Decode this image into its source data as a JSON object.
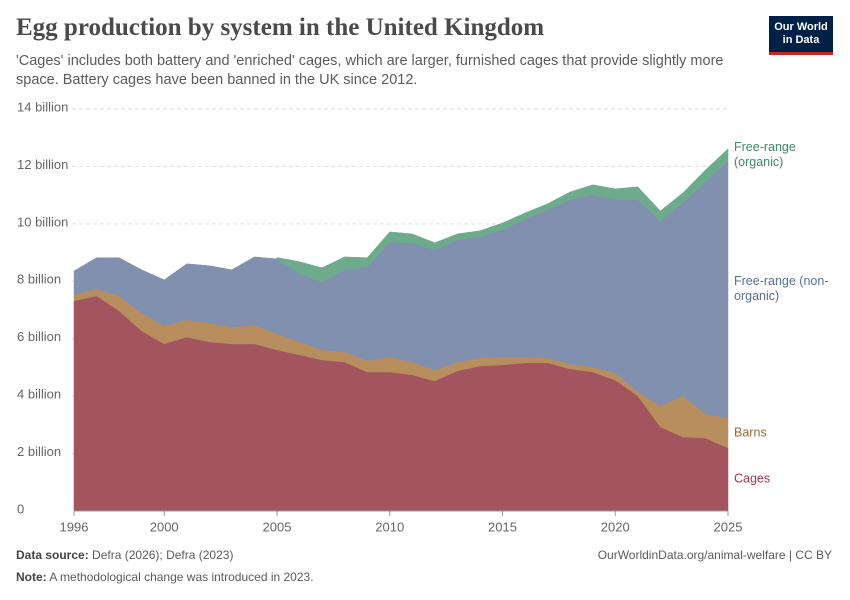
{
  "chart_data": {
    "type": "stacked-area",
    "title": "Egg production by system in the United Kingdom",
    "subtitle": "'Cages' includes both battery and 'enriched' cages, which are larger, furnished cages that provide slightly more space. Battery cages have been banned in the UK since 2012.",
    "logo": "Our World in Data",
    "source_label": "Data source:",
    "source": "Defra (2026); Defra (2023)",
    "url": "OurWorldinData.org/animal-welfare | CC BY",
    "note_label": "Note:",
    "note": "A methodological change was introduced in 2023.",
    "x": [
      1996,
      1997,
      1998,
      1999,
      2000,
      2001,
      2002,
      2003,
      2004,
      2005,
      2006,
      2007,
      2008,
      2009,
      2010,
      2011,
      2012,
      2013,
      2014,
      2015,
      2016,
      2017,
      2018,
      2019,
      2020,
      2021,
      2022,
      2023,
      2024,
      2025
    ],
    "xlim": [
      1996,
      2025
    ],
    "xticks": [
      1996,
      2000,
      2005,
      2010,
      2015,
      2020,
      2025
    ],
    "ylim": [
      0,
      14
    ],
    "yticks": [
      0,
      {
        "value": 2,
        "label": "2 billion"
      },
      {
        "value": 4,
        "label": "4 billion"
      },
      {
        "value": 6,
        "label": "6 billion"
      },
      {
        "value": 8,
        "label": "8 billion"
      },
      {
        "value": 10,
        "label": "10 billion"
      },
      {
        "value": 12,
        "label": "12 billion"
      },
      {
        "value": 14,
        "label": "14 billion"
      }
    ],
    "grid": true,
    "series": [
      {
        "name": "Cages",
        "color": "#a2555f",
        "label_color": "#a13548",
        "values": [
          7.32,
          7.49,
          6.97,
          6.27,
          5.82,
          6.06,
          5.89,
          5.82,
          5.82,
          5.61,
          5.44,
          5.26,
          5.19,
          4.84,
          4.84,
          4.74,
          4.53,
          4.88,
          5.05,
          5.09,
          5.16,
          5.16,
          4.95,
          4.84,
          4.56,
          4.01,
          2.93,
          2.58,
          2.54,
          2.2
        ]
      },
      {
        "name": "Barns",
        "color": "#b98e5f",
        "label_color": "#9a6a3a",
        "values": [
          0.21,
          0.25,
          0.52,
          0.63,
          0.63,
          0.6,
          0.66,
          0.59,
          0.66,
          0.56,
          0.45,
          0.35,
          0.35,
          0.39,
          0.53,
          0.45,
          0.38,
          0.31,
          0.28,
          0.28,
          0.21,
          0.17,
          0.17,
          0.18,
          0.25,
          0.14,
          0.73,
          1.43,
          0.84,
          1.04
        ]
      },
      {
        "name": "Free-range (non-organic)",
        "color": "#8090ae",
        "label_color": "#5b6f95",
        "values": [
          0.83,
          1.08,
          1.33,
          1.5,
          1.6,
          1.95,
          1.99,
          1.99,
          2.37,
          2.61,
          2.37,
          2.37,
          2.86,
          3.27,
          4.0,
          4.15,
          4.18,
          4.25,
          4.22,
          4.42,
          4.8,
          5.16,
          5.72,
          5.99,
          6.03,
          6.69,
          6.44,
          6.72,
          8.08,
          8.96
        ]
      },
      {
        "name": "Free-range (organic)",
        "color": "#6eab8d",
        "label_color": "#3f8a63",
        "values": [
          null,
          null,
          null,
          null,
          null,
          null,
          null,
          null,
          null,
          0.05,
          0.42,
          0.49,
          0.45,
          0.32,
          0.35,
          0.31,
          0.25,
          0.21,
          0.21,
          0.24,
          0.21,
          0.21,
          0.27,
          0.35,
          0.38,
          0.45,
          0.35,
          0.35,
          0.42,
          0.41
        ]
      }
    ]
  }
}
